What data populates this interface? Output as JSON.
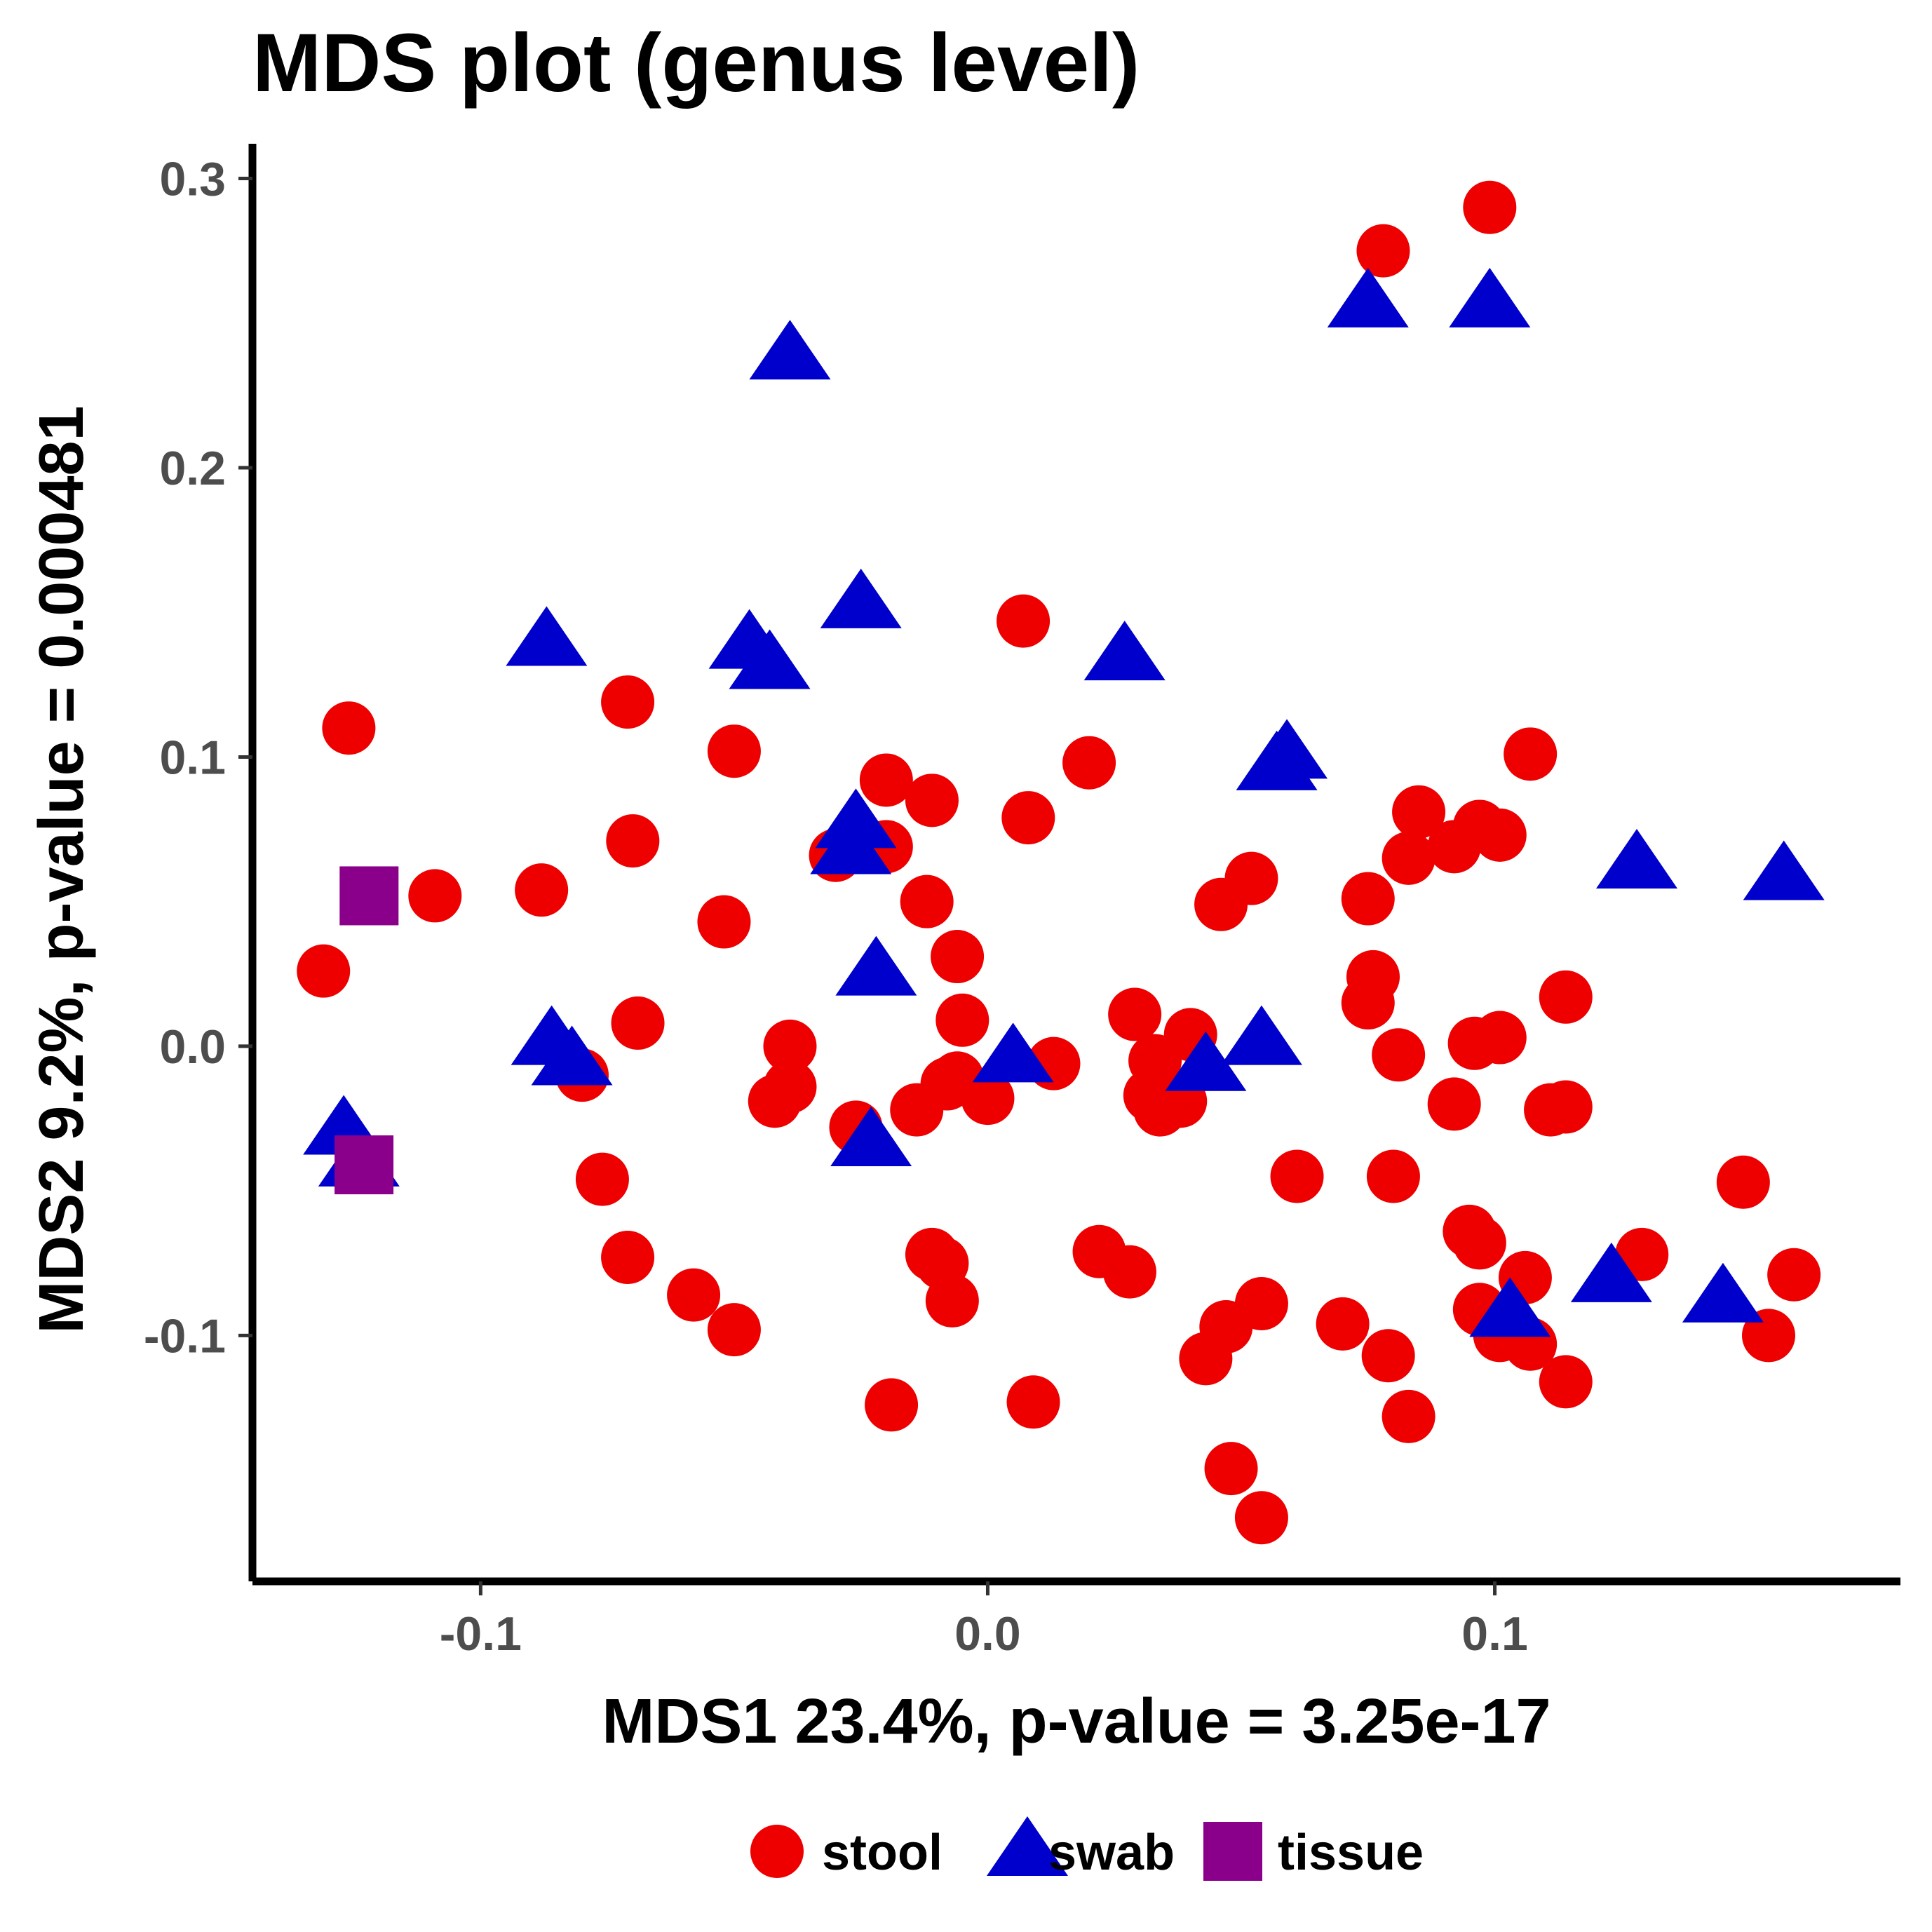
{
  "chart_data": {
    "type": "scatter",
    "title": "MDS plot (genus level)",
    "xlabel": "MDS1 23.4%, p-value = 3.25e-17",
    "ylabel": "MDS2 9.2%, p-value = 0.000481",
    "xlim": [
      -0.145,
      0.18
    ],
    "ylim": [
      -0.185,
      0.312
    ],
    "xticks": [
      -0.1,
      0.0,
      0.1
    ],
    "xtick_labels": [
      "-0.1",
      "0.0",
      "0.1"
    ],
    "yticks": [
      -0.1,
      0.0,
      0.1,
      0.2,
      0.3
    ],
    "ytick_labels": [
      "-0.1",
      "0.0",
      "0.1",
      "0.2",
      "0.3"
    ],
    "grid": false,
    "legend_position": "bottom",
    "series": [
      {
        "name": "stool",
        "shape": "circle",
        "color": "#ee0000",
        "points": [
          [
            0.099,
            0.29
          ],
          [
            0.078,
            0.275
          ],
          [
            0.007,
            0.147
          ],
          [
            -0.071,
            0.119
          ],
          [
            -0.126,
            0.11
          ],
          [
            -0.05,
            0.102
          ],
          [
            0.02,
            0.098
          ],
          [
            0.107,
            0.101
          ],
          [
            -0.02,
            0.092
          ],
          [
            -0.011,
            0.085
          ],
          [
            0.085,
            0.081
          ],
          [
            0.008,
            0.079
          ],
          [
            0.097,
            0.076
          ],
          [
            0.101,
            0.073
          ],
          [
            -0.07,
            0.071
          ],
          [
            0.092,
            0.069
          ],
          [
            -0.02,
            0.069
          ],
          [
            -0.03,
            0.066
          ],
          [
            0.083,
            0.065
          ],
          [
            -0.109,
            0.052
          ],
          [
            -0.088,
            0.054
          ],
          [
            0.052,
            0.058
          ],
          [
            0.046,
            0.049
          ],
          [
            0.075,
            0.051
          ],
          [
            -0.012,
            0.05
          ],
          [
            -0.052,
            0.043
          ],
          [
            -0.131,
            0.026
          ],
          [
            -0.006,
            0.031
          ],
          [
            0.076,
            0.024
          ],
          [
            0.114,
            0.017
          ],
          [
            0.075,
            0.015
          ],
          [
            -0.069,
            0.008
          ],
          [
            0.029,
            0.011
          ],
          [
            0.096,
            0.001
          ],
          [
            0.101,
            0.003
          ],
          [
            -0.039,
            0.0
          ],
          [
            0.081,
            -0.003
          ],
          [
            0.04,
            0.004
          ],
          [
            -0.005,
            0.009
          ],
          [
            0.033,
            -0.005
          ],
          [
            0.013,
            -0.006
          ],
          [
            -0.008,
            -0.013
          ],
          [
            -0.006,
            -0.011
          ],
          [
            -0.039,
            -0.014
          ],
          [
            0.032,
            -0.017
          ],
          [
            -0.042,
            -0.019
          ],
          [
            0.0,
            -0.018
          ],
          [
            -0.026,
            -0.028
          ],
          [
            0.034,
            -0.022
          ],
          [
            0.038,
            -0.019
          ],
          [
            0.092,
            -0.02
          ],
          [
            -0.014,
            -0.022
          ],
          [
            0.111,
            -0.022
          ],
          [
            0.114,
            -0.021
          ],
          [
            -0.08,
            -0.01
          ],
          [
            -0.076,
            -0.046
          ],
          [
            0.061,
            -0.045
          ],
          [
            0.08,
            -0.045
          ],
          [
            0.149,
            -0.047
          ],
          [
            -0.071,
            -0.073
          ],
          [
            -0.011,
            -0.072
          ],
          [
            0.022,
            -0.071
          ],
          [
            0.095,
            -0.064
          ],
          [
            0.129,
            -0.072
          ],
          [
            -0.009,
            -0.075
          ],
          [
            0.097,
            -0.068
          ],
          [
            -0.058,
            -0.086
          ],
          [
            0.028,
            -0.078
          ],
          [
            0.106,
            -0.08
          ],
          [
            0.159,
            -0.079
          ],
          [
            -0.05,
            -0.098
          ],
          [
            -0.007,
            -0.088
          ],
          [
            0.054,
            -0.089
          ],
          [
            0.097,
            -0.091
          ],
          [
            0.07,
            -0.096
          ],
          [
            0.047,
            -0.097
          ],
          [
            0.101,
            -0.1
          ],
          [
            0.107,
            -0.103
          ],
          [
            0.043,
            -0.108
          ],
          [
            0.079,
            -0.107
          ],
          [
            0.154,
            -0.1
          ],
          [
            0.114,
            -0.116
          ],
          [
            -0.019,
            -0.124
          ],
          [
            0.009,
            -0.123
          ],
          [
            0.083,
            -0.128
          ],
          [
            0.048,
            -0.146
          ],
          [
            0.054,
            -0.163
          ]
        ]
      },
      {
        "name": "swab",
        "shape": "triangle",
        "color": "#0000cc",
        "points": [
          [
            -0.039,
            0.239
          ],
          [
            0.075,
            0.257
          ],
          [
            0.099,
            0.257
          ],
          [
            -0.025,
            0.153
          ],
          [
            -0.087,
            0.14
          ],
          [
            -0.047,
            0.139
          ],
          [
            -0.043,
            0.132
          ],
          [
            0.027,
            0.135
          ],
          [
            0.059,
            0.101
          ],
          [
            0.057,
            0.097
          ],
          [
            -0.026,
            0.077
          ],
          [
            -0.027,
            0.068
          ],
          [
            -0.022,
            0.026
          ],
          [
            0.128,
            0.063
          ],
          [
            0.157,
            0.059
          ],
          [
            -0.086,
            0.002
          ],
          [
            -0.082,
            -0.005
          ],
          [
            0.005,
            -0.004
          ],
          [
            0.054,
            0.002
          ],
          [
            0.043,
            -0.007
          ],
          [
            -0.023,
            -0.033
          ],
          [
            -0.127,
            -0.029
          ],
          [
            -0.124,
            -0.04
          ],
          [
            0.103,
            -0.092
          ],
          [
            0.123,
            -0.08
          ],
          [
            0.145,
            -0.087
          ]
        ]
      },
      {
        "name": "tissue",
        "shape": "square",
        "color": "#8b008b",
        "points": [
          [
            -0.122,
            0.052
          ],
          [
            -0.123,
            -0.041
          ]
        ]
      }
    ]
  }
}
